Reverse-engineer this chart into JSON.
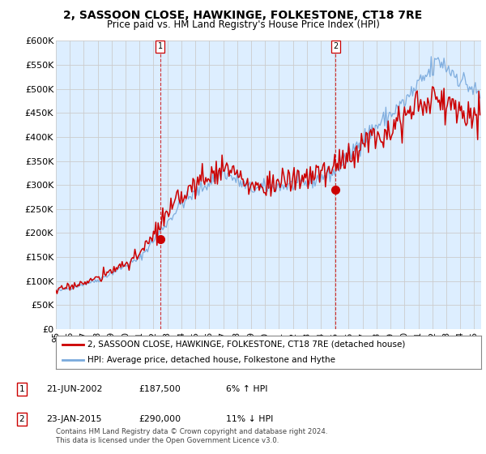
{
  "title": "2, SASSOON CLOSE, HAWKINGE, FOLKESTONE, CT18 7RE",
  "subtitle": "Price paid vs. HM Land Registry's House Price Index (HPI)",
  "ylim": [
    0,
    600000
  ],
  "yticks": [
    0,
    50000,
    100000,
    150000,
    200000,
    250000,
    300000,
    350000,
    400000,
    450000,
    500000,
    550000,
    600000
  ],
  "xlim_start": 1995.0,
  "xlim_end": 2025.5,
  "purchase_dates": [
    2002.47,
    2015.07
  ],
  "purchase_prices": [
    187500,
    290000
  ],
  "purchase_labels": [
    "1",
    "2"
  ],
  "legend_entries": [
    "2, SASSOON CLOSE, HAWKINGE, FOLKESTONE, CT18 7RE (detached house)",
    "HPI: Average price, detached house, Folkestone and Hythe"
  ],
  "table_rows": [
    [
      "1",
      "21-JUN-2002",
      "£187,500",
      "6% ↑ HPI"
    ],
    [
      "2",
      "23-JAN-2015",
      "£290,000",
      "11% ↓ HPI"
    ]
  ],
  "footer": "Contains HM Land Registry data © Crown copyright and database right 2024.\nThis data is licensed under the Open Government Licence v3.0.",
  "hpi_color": "#7aaadd",
  "price_color": "#cc0000",
  "marker_color": "#cc0000",
  "vline_color": "#cc0000",
  "grid_color": "#cccccc",
  "bg_color": "#ffffff",
  "plot_bg_color": "#ddeeff",
  "title_fontsize": 10,
  "subtitle_fontsize": 8.5,
  "axis_fontsize": 8
}
